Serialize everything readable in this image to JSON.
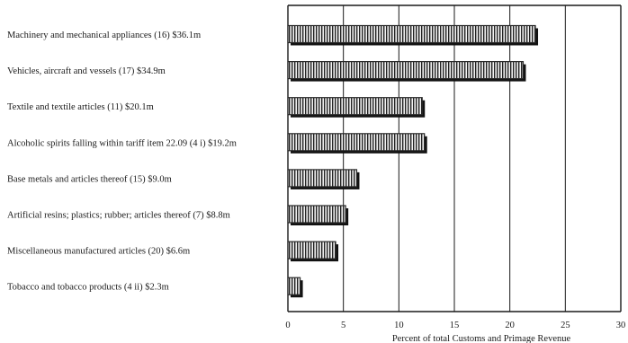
{
  "chart_data": {
    "type": "bar",
    "orientation": "horizontal",
    "categories": [
      "Machinery and mechanical appliances (16) $36.1m",
      "Vehicles, aircraft and vessels (17) $34.9m",
      "Textile and textile articles (11) $20.1m",
      "Alcoholic spirits falling within tariff item 22.09 (4 i) $19.2m",
      "Base metals and articles thereof (15) $9.0m",
      "Artificial resins; plastics; rubber; articles thereof (7) $8.8m",
      "Miscellaneous manufactured articles (20) $6.6m",
      "Tobacco and tobacco products (4 ii) $2.3m"
    ],
    "values": [
      22.3,
      21.2,
      12.1,
      12.3,
      6.2,
      5.2,
      4.3,
      1.1
    ],
    "xlabel": "Percent of total Customs and Primage Revenue",
    "xlim": [
      0,
      30
    ],
    "xticks": [
      "0",
      "5",
      "10",
      "15",
      "20",
      "25",
      "30"
    ],
    "grid": "vertical",
    "colors": {
      "bar": "#2a2a2a",
      "bar_fill": "#e8e8e8",
      "grid": "#1a1a1a"
    }
  }
}
